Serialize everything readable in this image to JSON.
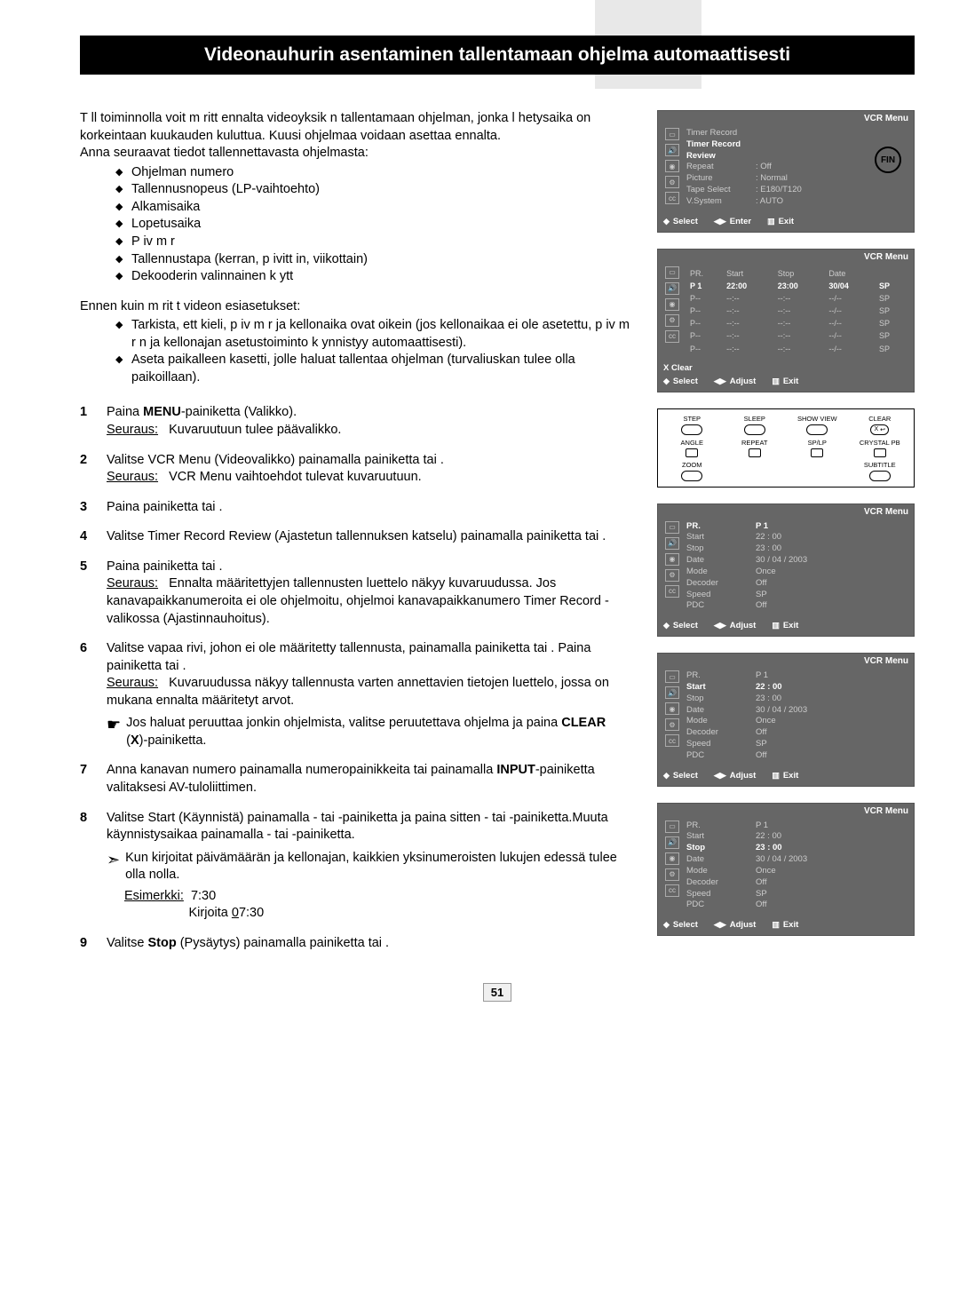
{
  "page": {
    "title": "Videonauhurin asentaminen tallentamaan ohjelma automaattisesti",
    "lang_badge": "FIN",
    "page_number": "51"
  },
  "intro": {
    "p1": "T ll  toiminnolla voit m  ritt   ennalta videoyksik n tallentamaan ohjelman, jonka l hetysaika on korkeintaan kuukauden kuluttua. Kuusi ohjelmaa voidaan asettaa ennalta.",
    "p2": "Anna seuraavat tiedot tallennettavasta ohjelmasta:",
    "bullets": [
      "Ohjelman numero",
      "Tallennusnopeus (LP-vaihtoehto)",
      "Alkamisaika",
      "Lopetusaika",
      "P iv m  r",
      "Tallennustapa (kerran, p ivitt in, viikottain)",
      "Dekooderin valinnainen k ytt"
    ],
    "p3": "Ennen kuin m  rit t videon esiasetukset:",
    "bullets2": [
      "Tarkista, ett  kieli, p iv m  r  ja kellonaika ovat oikein (jos kellonaikaa ei ole asetettu, p iv m  r n ja kellonajan asetustoiminto k ynnistyy automaattisesti).",
      "Aseta paikalleen kasetti, jolle haluat tallentaa ohjelman (turvaliuskan tulee olla paikoillaan)."
    ]
  },
  "steps": {
    "s1a": "Paina ",
    "s1m": "MENU",
    "s1b": "-painiketta (Valikko).",
    "s1r": "Seuraus:",
    "s1rt": "Kuvaruutuun tulee päävalikko.",
    "s2": "Valitse  VCR Menu (Videovalikko) painamalla painiketta      tai     .",
    "s2r": "Seuraus:",
    "s2rt": "VCR Menu vaihtoehdot tulevat kuvaruutuun.",
    "s3": "Paina painiketta      tai     .",
    "s4": "Valitse Timer Record Review       (Ajastetun tallennuksen katselu) painamalla painiketta      tai     .",
    "s5": "Paina painiketta      tai     .",
    "s5r": "Seuraus:",
    "s5rt": "Ennalta määritettyjen tallennusten luettelo näkyy kuvaruudussa. Jos kanavapaikkanumeroita ei ole ohjelmoitu, ohjelmoi kanavapaikkanumero Timer Record -valikossa (Ajastinnauhoitus).",
    "s6": "Valitse vapaa rivi, johon ei ole määritetty tallennusta, painamalla painiketta      tai     . Paina painiketta      tai     .",
    "s6r": "Seuraus:",
    "s6rt": "Kuvaruudussa näkyy tallennusta varten annettavien tietojen luettelo, jossa on mukana ennalta määritetyt arvot.",
    "s6p": "Jos haluat peruuttaa jonkin ohjelmista, valitse peruutettava ohjelma ja paina ",
    "s6pm": "CLEAR",
    "s6pb": " (",
    "s6px": "X",
    "s6pe": ")-painiketta.",
    "s7a": "Anna kanavan numero painamalla numeropainikkeita tai painamalla ",
    "s7m": "INPUT",
    "s7b": "-painiketta valitaksesi AV-tuloliittimen.",
    "s8": "Valitse Start      (Käynnistä) painamalla     - tai     -painiketta ja paina sitten     - tai     -painiketta.Muuta käynnistysaikaa painamalla     - tai    -painiketta.",
    "s8n": "Kun kirjoitat päivämäärän ja kellonajan, kaikkien yksinumeroisten lukujen edessä tulee olla nolla.",
    "s8ex_l": "Esimerkki:",
    "s8ex_v": "7:30",
    "s8ex_w": "Kirjoita ",
    "s8ex_wv": "0",
    "s8ex_wv2": "7:30",
    "s9a": "Valitse ",
    "s9m": "Stop",
    "s9b": " (Pysäytys) painamalla painiketta      tai     ."
  },
  "vcr_common": {
    "menu_title": "VCR Menu",
    "select": "Select",
    "enter": "Enter",
    "adjust": "Adjust",
    "exit": "Exit",
    "x_clear": "X  Clear"
  },
  "screen1": {
    "rows": [
      {
        "label": "Timer Record",
        "value": "",
        "hl": false
      },
      {
        "label": "Timer Record Review",
        "value": "",
        "hl": true
      },
      {
        "label": "Repeat",
        "value": ": Off",
        "hl": false
      },
      {
        "label": "Picture",
        "value": ": Normal",
        "hl": false
      },
      {
        "label": "Tape Select",
        "value": ": E180/T120",
        "hl": false
      },
      {
        "label": "V.System",
        "value": ": AUTO",
        "hl": false
      }
    ]
  },
  "screen2": {
    "headers": [
      "PR.",
      "Start",
      "Stop",
      "Date",
      ""
    ],
    "rows": [
      [
        "P 1",
        "22:00",
        "23:00",
        "30/04",
        "SP"
      ],
      [
        "P--",
        "--:--",
        "--:--",
        "--/--",
        "SP"
      ],
      [
        "P--",
        "--:--",
        "--:--",
        "--/--",
        "SP"
      ],
      [
        "P--",
        "--:--",
        "--:--",
        "--/--",
        "SP"
      ],
      [
        "P--",
        "--:--",
        "--:--",
        "--/--",
        "SP"
      ],
      [
        "P--",
        "--:--",
        "--:--",
        "--/--",
        "SP"
      ]
    ]
  },
  "remote": {
    "labels": [
      "STEP",
      "SLEEP",
      "SHOW VIEW",
      "CLEAR",
      "ANGLE",
      "REPEAT",
      "SP/LP",
      "CRYSTAL PB",
      "ZOOM",
      "",
      "",
      "SUBTITLE"
    ],
    "clear_x": "X"
  },
  "screen3": {
    "rows": [
      {
        "label": "PR.",
        "value": "P 1",
        "hl": true
      },
      {
        "label": "Start",
        "value": "22 : 00",
        "hl": false
      },
      {
        "label": "Stop",
        "value": "23 : 00",
        "hl": false
      },
      {
        "label": "Date",
        "value": "30 / 04 / 2003",
        "hl": false
      },
      {
        "label": "Mode",
        "value": "Once",
        "hl": false
      },
      {
        "label": "Decoder",
        "value": "Off",
        "hl": false
      },
      {
        "label": "Speed",
        "value": "SP",
        "hl": false
      },
      {
        "label": "PDC",
        "value": "Off",
        "hl": false
      }
    ]
  },
  "screen4": {
    "rows": [
      {
        "label": "PR.",
        "value": "P 1",
        "hl": false
      },
      {
        "label": "Start",
        "value": "22 : 00",
        "hl": true
      },
      {
        "label": "Stop",
        "value": "23 : 00",
        "hl": false
      },
      {
        "label": "Date",
        "value": "30 / 04 / 2003",
        "hl": false
      },
      {
        "label": "Mode",
        "value": "Once",
        "hl": false
      },
      {
        "label": "Decoder",
        "value": "Off",
        "hl": false
      },
      {
        "label": "Speed",
        "value": "SP",
        "hl": false
      },
      {
        "label": "PDC",
        "value": "Off",
        "hl": false
      }
    ]
  },
  "screen5": {
    "rows": [
      {
        "label": "PR.",
        "value": "P  1",
        "hl": false
      },
      {
        "label": "Start",
        "value": "22 : 00",
        "hl": false
      },
      {
        "label": "Stop",
        "value": "23 : 00",
        "hl": true
      },
      {
        "label": "Date",
        "value": "30 / 04 / 2003",
        "hl": false
      },
      {
        "label": "Mode",
        "value": "Once",
        "hl": false
      },
      {
        "label": "Decoder",
        "value": "Off",
        "hl": false
      },
      {
        "label": "Speed",
        "value": "SP",
        "hl": false
      },
      {
        "label": "PDC",
        "value": "Off",
        "hl": false
      }
    ]
  }
}
